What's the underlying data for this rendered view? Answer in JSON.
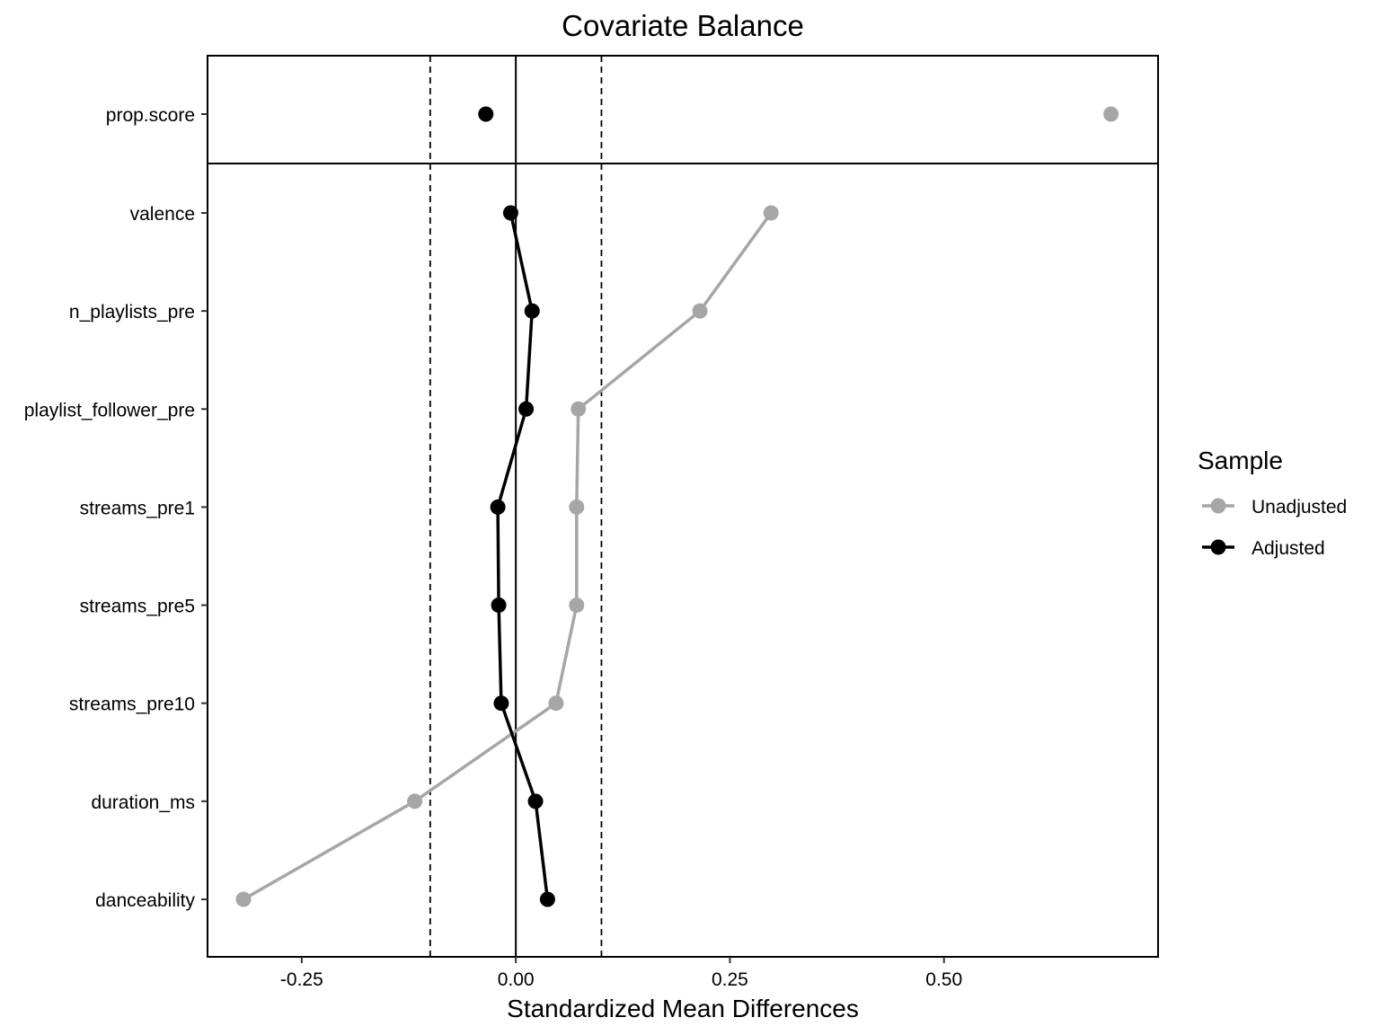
{
  "chart_data": {
    "type": "scatter",
    "title": "Covariate Balance",
    "xlabel": "Standardized Mean Differences",
    "ylabel": "",
    "xlim": [
      -0.36,
      0.75
    ],
    "x_ticks": [
      -0.25,
      0.0,
      0.25,
      0.5
    ],
    "x_tick_labels": [
      "-0.25",
      "0.00",
      "0.25",
      "0.50"
    ],
    "threshold_lines": [
      -0.1,
      0.1
    ],
    "reference_line": 0,
    "grid": false,
    "top_panel_categories": [
      "prop.score"
    ],
    "categories": [
      "valence",
      "n_playlists_pre",
      "playlist_follower_pre",
      "streams_pre1",
      "streams_pre5",
      "streams_pre10",
      "duration_ms",
      "danceability"
    ],
    "legend": {
      "title": "Sample",
      "position": "right"
    },
    "series": [
      {
        "name": "Unadjusted",
        "color": "#a6a6a6",
        "prop_score": 0.695,
        "values": [
          0.298,
          0.215,
          0.073,
          0.071,
          0.071,
          0.047,
          -0.118,
          -0.318
        ]
      },
      {
        "name": "Adjusted",
        "color": "#000000",
        "prop_score": -0.035,
        "values": [
          -0.006,
          0.019,
          0.012,
          -0.021,
          -0.02,
          -0.017,
          0.023,
          0.037
        ]
      }
    ]
  }
}
